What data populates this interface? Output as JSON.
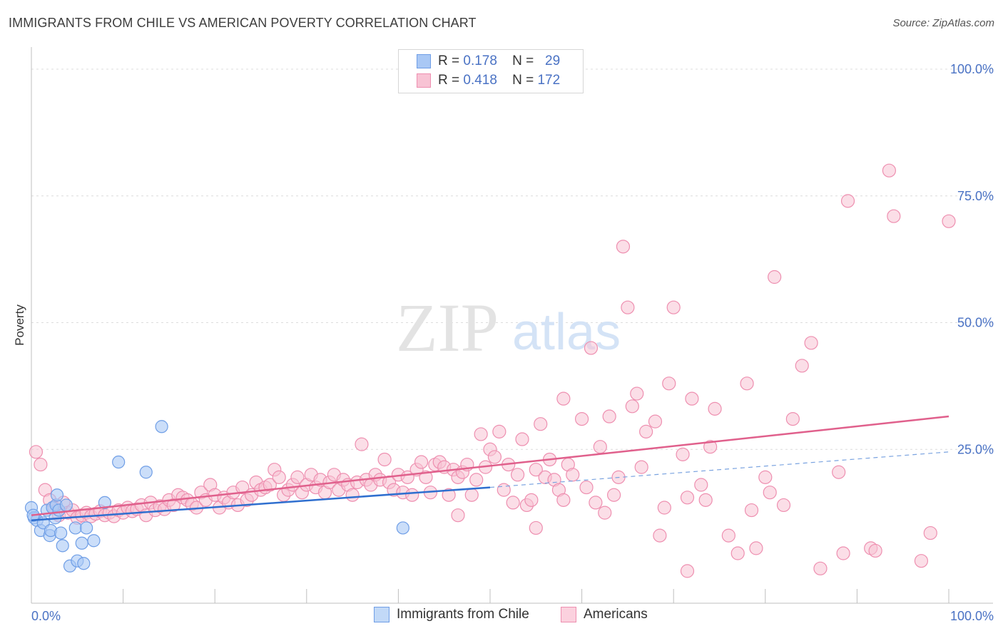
{
  "title": "IMMIGRANTS FROM CHILE VS AMERICAN POVERTY CORRELATION CHART",
  "source": "Source: ZipAtlas.com",
  "watermark": {
    "zip": "ZIP",
    "atlas": "atlas"
  },
  "legend_top": [
    {
      "r_label": "R =",
      "r_value": "0.178",
      "n_label": "N =",
      "n_value": "29",
      "color": "#a9c8f5",
      "border": "#6f9ee6"
    },
    {
      "r_label": "R =",
      "r_value": "0.418",
      "n_label": "N =",
      "n_value": "172",
      "color": "#f8c3d4",
      "border": "#ee8fb0"
    }
  ],
  "bottom_legend": [
    {
      "label": "Immigrants from Chile",
      "color": "#c2d9f7",
      "border": "#6f9ee6"
    },
    {
      "label": "Americans",
      "color": "#fbd1de",
      "border": "#ee8fb0"
    }
  ],
  "chart_data": {
    "type": "scatter",
    "title": "IMMIGRANTS FROM CHILE VS AMERICAN POVERTY CORRELATION CHART",
    "xlabel": "",
    "ylabel": "Poverty",
    "xlim": [
      0,
      100
    ],
    "ylim": [
      0,
      100
    ],
    "x_tick_labels": [
      "0.0%",
      "100.0%"
    ],
    "y_tick_labels": [
      "25.0%",
      "50.0%",
      "75.0%",
      "100.0%"
    ],
    "y_ticks": [
      25,
      50,
      75,
      100
    ],
    "grid": true,
    "legend_position": "top-center",
    "series": [
      {
        "name": "Immigrants from Chile",
        "color": "#6f9ee6",
        "fill": "#a9c8f5",
        "trend": {
          "x": [
            0,
            50
          ],
          "y": [
            11.0,
            17.5
          ],
          "dashed_to": [
            100,
            24.5
          ],
          "color": "#2f6fcf"
        },
        "points": [
          [
            0.0,
            13.5
          ],
          [
            0.3,
            11.5
          ],
          [
            0.6,
            11.0
          ],
          [
            1.0,
            9.0
          ],
          [
            1.3,
            10.5
          ],
          [
            1.7,
            13.0
          ],
          [
            2.0,
            8.0
          ],
          [
            2.1,
            9.0
          ],
          [
            2.3,
            13.5
          ],
          [
            2.6,
            11.5
          ],
          [
            2.7,
            14.0
          ],
          [
            2.8,
            16.0
          ],
          [
            3.0,
            13.0
          ],
          [
            3.2,
            8.5
          ],
          [
            3.4,
            6.0
          ],
          [
            3.8,
            14.0
          ],
          [
            4.2,
            2.0
          ],
          [
            4.8,
            9.5
          ],
          [
            5.0,
            3.0
          ],
          [
            5.5,
            6.5
          ],
          [
            5.7,
            2.5
          ],
          [
            6.0,
            9.5
          ],
          [
            6.8,
            7.0
          ],
          [
            8.0,
            14.5
          ],
          [
            9.5,
            22.5
          ],
          [
            12.5,
            20.5
          ],
          [
            14.2,
            29.5
          ],
          [
            40.5,
            9.5
          ],
          [
            0.2,
            12.0
          ]
        ]
      },
      {
        "name": "Americans",
        "color": "#ee8fb0",
        "fill": "#f8c3d4",
        "trend": {
          "x": [
            0,
            100
          ],
          "y": [
            12.0,
            31.5
          ],
          "color": "#e0608c"
        },
        "points": [
          [
            0.5,
            24.5
          ],
          [
            1.0,
            22.0
          ],
          [
            1.5,
            17.0
          ],
          [
            2.0,
            15.0
          ],
          [
            2.5,
            13.5
          ],
          [
            3.0,
            12.0
          ],
          [
            3.5,
            14.5
          ],
          [
            4.0,
            12.5
          ],
          [
            4.5,
            13.0
          ],
          [
            5.0,
            11.5
          ],
          [
            5.5,
            12.0
          ],
          [
            6.0,
            12.5
          ],
          [
            6.5,
            11.8
          ],
          [
            7.0,
            12.3
          ],
          [
            7.5,
            12.8
          ],
          [
            8.0,
            12.0
          ],
          [
            8.5,
            12.5
          ],
          [
            9.0,
            11.8
          ],
          [
            9.5,
            13.0
          ],
          [
            10.0,
            12.5
          ],
          [
            10.5,
            13.5
          ],
          [
            11.0,
            12.8
          ],
          [
            11.5,
            13.2
          ],
          [
            12.0,
            14.0
          ],
          [
            12.5,
            12.0
          ],
          [
            13.0,
            14.5
          ],
          [
            13.5,
            13.0
          ],
          [
            14.0,
            13.8
          ],
          [
            14.5,
            13.2
          ],
          [
            15.0,
            15.0
          ],
          [
            15.5,
            14.0
          ],
          [
            16.0,
            16.0
          ],
          [
            16.5,
            15.5
          ],
          [
            17.0,
            15.0
          ],
          [
            17.5,
            14.2
          ],
          [
            18.0,
            13.5
          ],
          [
            18.5,
            16.5
          ],
          [
            19.0,
            15.0
          ],
          [
            19.5,
            18.0
          ],
          [
            20.0,
            16.0
          ],
          [
            20.5,
            13.5
          ],
          [
            21.0,
            15.5
          ],
          [
            21.5,
            14.5
          ],
          [
            22.0,
            16.5
          ],
          [
            22.5,
            14.0
          ],
          [
            23.0,
            17.5
          ],
          [
            23.5,
            15.0
          ],
          [
            24.0,
            16.0
          ],
          [
            24.5,
            18.5
          ],
          [
            25.0,
            17.0
          ],
          [
            25.5,
            17.5
          ],
          [
            26.0,
            18.0
          ],
          [
            26.5,
            21.0
          ],
          [
            27.0,
            19.5
          ],
          [
            27.5,
            16.0
          ],
          [
            28.0,
            17.0
          ],
          [
            28.5,
            18.0
          ],
          [
            29.0,
            19.5
          ],
          [
            29.5,
            16.5
          ],
          [
            30.0,
            18.0
          ],
          [
            30.5,
            20.0
          ],
          [
            31.0,
            17.5
          ],
          [
            31.5,
            19.0
          ],
          [
            32.0,
            16.5
          ],
          [
            32.5,
            18.5
          ],
          [
            33.0,
            20.0
          ],
          [
            33.5,
            17.0
          ],
          [
            34.0,
            19.0
          ],
          [
            34.5,
            18.0
          ],
          [
            35.0,
            16.0
          ],
          [
            35.5,
            18.5
          ],
          [
            36.0,
            26.0
          ],
          [
            36.5,
            19.0
          ],
          [
            37.0,
            18.0
          ],
          [
            37.5,
            20.0
          ],
          [
            38.0,
            19.0
          ],
          [
            38.5,
            23.0
          ],
          [
            39.0,
            18.5
          ],
          [
            39.5,
            17.0
          ],
          [
            40.0,
            20.0
          ],
          [
            40.5,
            16.5
          ],
          [
            41.0,
            19.5
          ],
          [
            41.5,
            16.0
          ],
          [
            42.0,
            21.0
          ],
          [
            42.5,
            22.5
          ],
          [
            43.0,
            19.5
          ],
          [
            43.5,
            16.5
          ],
          [
            44.0,
            22.0
          ],
          [
            44.5,
            22.5
          ],
          [
            45.0,
            21.5
          ],
          [
            45.5,
            16.0
          ],
          [
            46.0,
            21.0
          ],
          [
            46.5,
            19.5
          ],
          [
            47.0,
            20.5
          ],
          [
            47.5,
            22.0
          ],
          [
            48.0,
            16.0
          ],
          [
            48.5,
            19.0
          ],
          [
            49.0,
            28.0
          ],
          [
            49.5,
            21.5
          ],
          [
            50.0,
            25.0
          ],
          [
            50.5,
            23.5
          ],
          [
            51.0,
            28.5
          ],
          [
            51.5,
            17.0
          ],
          [
            52.0,
            22.0
          ],
          [
            52.5,
            14.5
          ],
          [
            53.0,
            20.0
          ],
          [
            53.5,
            27.0
          ],
          [
            54.0,
            14.0
          ],
          [
            54.5,
            15.0
          ],
          [
            55.0,
            21.0
          ],
          [
            55.5,
            30.0
          ],
          [
            56.0,
            19.5
          ],
          [
            56.5,
            23.0
          ],
          [
            57.0,
            19.0
          ],
          [
            57.5,
            17.0
          ],
          [
            58.0,
            35.0
          ],
          [
            58.5,
            22.0
          ],
          [
            59.0,
            20.0
          ],
          [
            60.0,
            31.0
          ],
          [
            60.5,
            17.5
          ],
          [
            61.0,
            45.0
          ],
          [
            61.5,
            14.5
          ],
          [
            62.0,
            25.5
          ],
          [
            62.5,
            12.5
          ],
          [
            63.0,
            31.5
          ],
          [
            63.5,
            16.0
          ],
          [
            64.0,
            19.5
          ],
          [
            64.5,
            65.0
          ],
          [
            65.0,
            53.0
          ],
          [
            65.5,
            33.5
          ],
          [
            66.0,
            36.0
          ],
          [
            66.5,
            21.5
          ],
          [
            67.0,
            28.5
          ],
          [
            68.0,
            30.5
          ],
          [
            68.5,
            8.0
          ],
          [
            69.0,
            13.5
          ],
          [
            69.5,
            38.0
          ],
          [
            70.0,
            53.0
          ],
          [
            71.0,
            24.0
          ],
          [
            71.5,
            15.5
          ],
          [
            72.0,
            35.0
          ],
          [
            73.0,
            18.0
          ],
          [
            73.5,
            15.0
          ],
          [
            74.0,
            25.5
          ],
          [
            74.5,
            33.0
          ],
          [
            76.0,
            8.0
          ],
          [
            77.0,
            4.5
          ],
          [
            78.0,
            38.0
          ],
          [
            78.5,
            13.0
          ],
          [
            79.0,
            5.5
          ],
          [
            80.0,
            19.5
          ],
          [
            80.5,
            16.5
          ],
          [
            81.0,
            59.0
          ],
          [
            82.0,
            14.0
          ],
          [
            83.0,
            31.0
          ],
          [
            84.0,
            41.5
          ],
          [
            85.0,
            46.0
          ],
          [
            86.0,
            1.5
          ],
          [
            88.0,
            20.5
          ],
          [
            88.5,
            4.5
          ],
          [
            89.0,
            74.0
          ],
          [
            91.5,
            5.5
          ],
          [
            92.0,
            5.0
          ],
          [
            93.5,
            80.0
          ],
          [
            94.0,
            71.0
          ],
          [
            97.0,
            3.0
          ],
          [
            98.0,
            8.5
          ],
          [
            100.0,
            70.0
          ],
          [
            71.5,
            1.0
          ],
          [
            55.0,
            9.5
          ],
          [
            46.5,
            12.0
          ],
          [
            58.0,
            15.0
          ]
        ]
      }
    ]
  }
}
